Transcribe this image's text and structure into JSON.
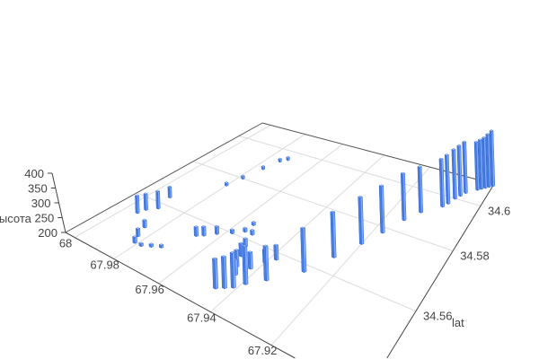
{
  "chart_data": {
    "type": "bar3d",
    "title": "",
    "axes": {
      "x": {
        "label": "",
        "range": [
          68.005,
          67.895
        ],
        "ticks": [
          "68",
          "67.98",
          "67.96",
          "67.94",
          "67.92"
        ],
        "tick_values": [
          68,
          67.98,
          67.96,
          67.94,
          67.92
        ]
      },
      "y": {
        "label": "lat",
        "range": [
          34.54,
          34.612
        ],
        "ticks": [
          "34.56",
          "34.58",
          "34.6"
        ],
        "tick_values": [
          34.56,
          34.58,
          34.6
        ]
      },
      "z": {
        "label": "высота",
        "range": [
          200,
          400
        ],
        "ticks": [
          "200",
          "250",
          "300",
          "350",
          "400"
        ],
        "tick_values": [
          200,
          250,
          300,
          350,
          400
        ]
      }
    },
    "grid": true,
    "bar_color": "#5b8ff9",
    "points": [
      [
        67.994,
        34.554,
        262
      ],
      [
        67.993,
        34.556,
        258
      ],
      [
        67.99,
        34.558,
        262
      ],
      [
        67.992,
        34.563,
        240
      ],
      [
        67.985,
        34.551,
        225
      ],
      [
        67.983,
        34.548,
        225
      ],
      [
        67.981,
        34.546,
        220
      ],
      [
        67.978,
        34.546,
        208
      ],
      [
        67.975,
        34.547,
        208
      ],
      [
        67.972,
        34.548,
        208
      ],
      [
        67.98,
        34.575,
        206
      ],
      [
        67.978,
        34.58,
        206
      ],
      [
        67.976,
        34.587,
        206
      ],
      [
        67.974,
        34.593,
        206
      ],
      [
        67.972,
        34.595,
        206
      ],
      [
        67.967,
        34.555,
        230
      ],
      [
        67.965,
        34.556,
        230
      ],
      [
        67.962,
        34.558,
        225
      ],
      [
        67.958,
        34.56,
        212
      ],
      [
        67.955,
        34.562,
        212
      ],
      [
        67.955,
        34.565,
        210
      ],
      [
        67.952,
        34.562,
        215
      ],
      [
        67.95,
        34.558,
        225
      ],
      [
        67.948,
        34.555,
        240
      ],
      [
        67.946,
        34.552,
        250
      ],
      [
        67.944,
        34.55,
        245
      ],
      [
        67.942,
        34.553,
        250
      ],
      [
        67.94,
        34.556,
        240
      ],
      [
        67.938,
        34.558,
        245
      ],
      [
        67.945,
        34.545,
        285
      ],
      [
        67.943,
        34.546,
        290
      ],
      [
        67.941,
        34.547,
        300
      ],
      [
        67.939,
        34.549,
        310
      ],
      [
        67.935,
        34.552,
        300
      ],
      [
        67.928,
        34.558,
        330
      ],
      [
        67.924,
        34.565,
        340
      ],
      [
        67.92,
        34.572,
        350
      ],
      [
        67.917,
        34.578,
        355
      ],
      [
        67.914,
        34.585,
        360
      ],
      [
        67.911,
        34.59,
        360
      ],
      [
        67.906,
        34.595,
        370
      ],
      [
        67.905,
        34.597,
        375
      ],
      [
        67.904,
        34.6,
        380
      ],
      [
        67.903,
        34.602,
        385
      ],
      [
        67.902,
        34.604,
        390
      ],
      [
        67.899,
        34.607,
        380
      ],
      [
        67.898,
        34.608,
        385
      ],
      [
        67.897,
        34.609,
        390
      ],
      [
        67.896,
        34.61,
        400
      ],
      [
        67.895,
        34.611,
        410
      ]
    ]
  }
}
